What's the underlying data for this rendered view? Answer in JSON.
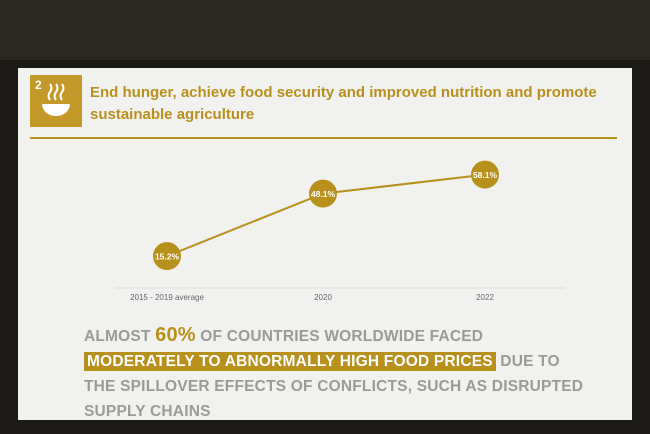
{
  "goal": {
    "number": "2",
    "title": "End hunger, achieve food security and improved nutrition and promote sustainable agriculture"
  },
  "chart_data": {
    "type": "line",
    "color": "#b8901c",
    "categories": [
      "2015 - 2019 average",
      "2020",
      "2022"
    ],
    "values": [
      15.2,
      48.1,
      58.1
    ],
    "value_labels": [
      "15.2%",
      "48.1%",
      "58.1%"
    ]
  },
  "statement": {
    "parts": [
      "ALMOST ",
      "60%",
      " OF COUNTRIES WORLDWIDE FACED ",
      "MODERATELY TO ABNORMALLY HIGH FOOD PRICES",
      " DUE TO THE SPILLOVER EFFECTS OF CONFLICTS, SUCH AS DISRUPTED SUPPLY CHAINS"
    ]
  }
}
